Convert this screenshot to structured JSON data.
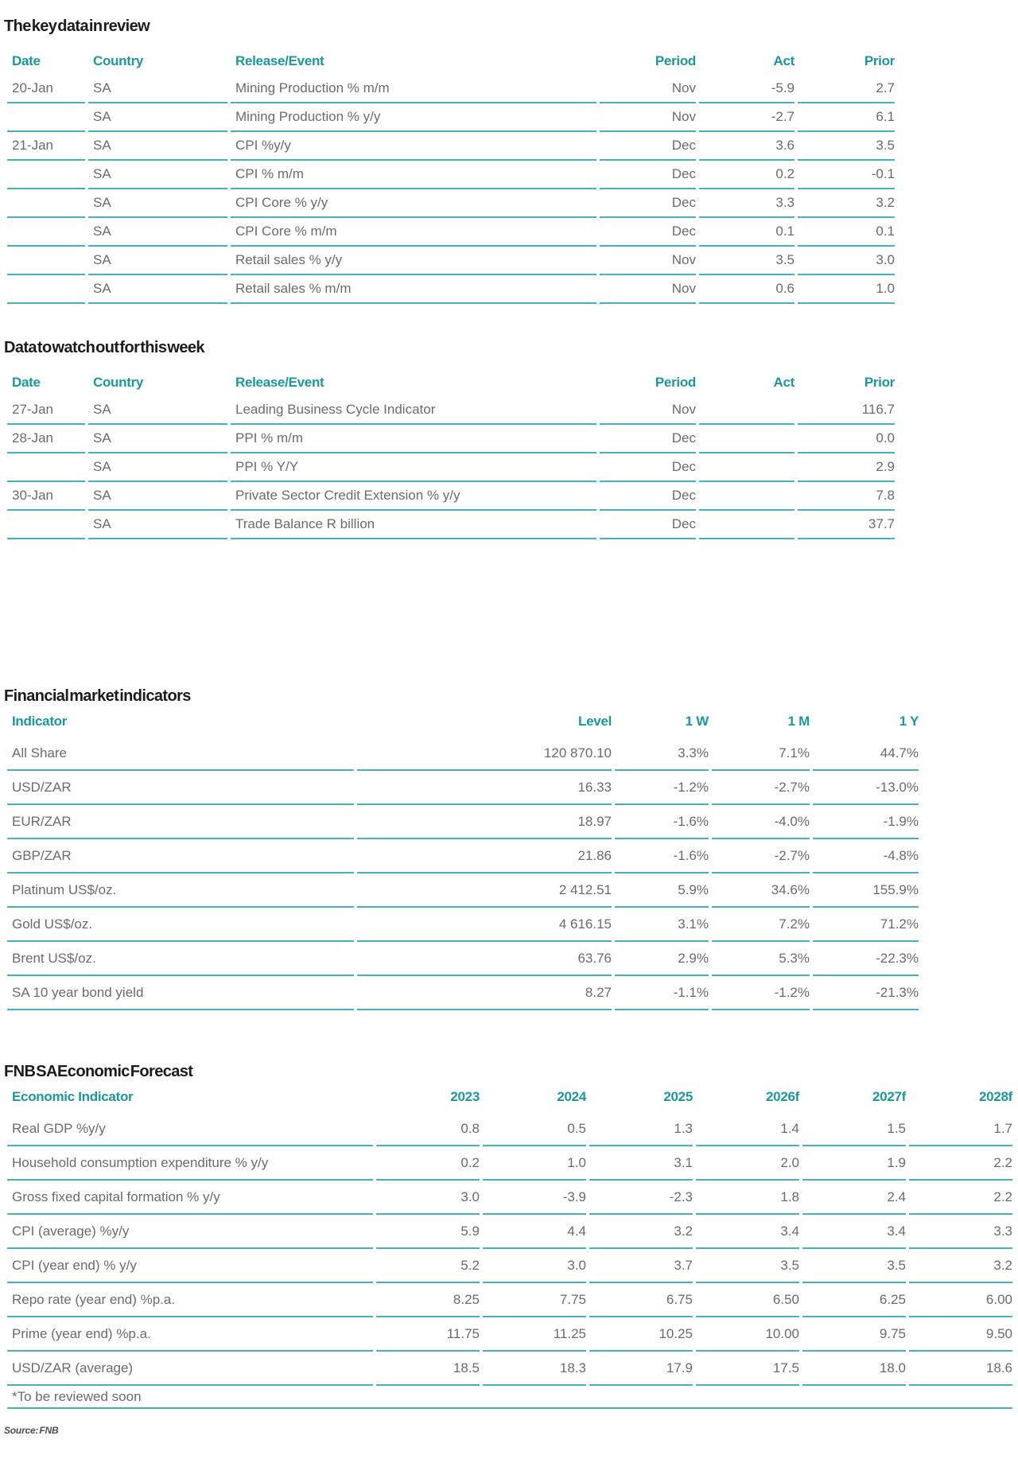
{
  "colors": {
    "accent_teal": "#1a97a0",
    "line_teal": "#46b2b8",
    "body_text": "#6a6b6e",
    "title_text": "#1c1c1c"
  },
  "key_data": {
    "title": "The key data in review",
    "headers": [
      "Date",
      "Country",
      "Release/Event",
      "Period",
      "Act",
      "Prior"
    ],
    "rows": [
      [
        "20-Jan",
        "SA",
        "Mining Production % m/m",
        "Nov",
        "-5.9",
        "2.7"
      ],
      [
        "",
        "SA",
        "Mining Production % y/y",
        "Nov",
        "-2.7",
        "6.1"
      ],
      [
        "21-Jan",
        "SA",
        "CPI %y/y",
        "Dec",
        "3.6",
        "3.5"
      ],
      [
        "",
        "SA",
        "CPI % m/m",
        "Dec",
        "0.2",
        "-0.1"
      ],
      [
        "",
        "SA",
        "CPI Core % y/y",
        "Dec",
        "3.3",
        "3.2"
      ],
      [
        "",
        "SA",
        "CPI Core % m/m",
        "Dec",
        "0.1",
        "0.1"
      ],
      [
        "",
        "SA",
        "Retail sales % y/y",
        "Nov",
        "3.5",
        "3.0"
      ],
      [
        "",
        "SA",
        "Retail sales % m/m",
        "Nov",
        "0.6",
        "1.0"
      ]
    ]
  },
  "watch": {
    "title": "Data to watch out for this week",
    "headers": [
      "Date",
      "Country",
      "Release/Event",
      "Period",
      "Act",
      "Prior"
    ],
    "rows": [
      [
        "27-Jan",
        "SA",
        "Leading Business Cycle Indicator",
        "Nov",
        "",
        "116.7"
      ],
      [
        "28-Jan",
        "SA",
        "PPI % m/m",
        "Dec",
        "",
        "0.0"
      ],
      [
        "",
        "SA",
        "PPI % Y/Y",
        "Dec",
        "",
        "2.9"
      ],
      [
        "30-Jan",
        "SA",
        "Private Sector Credit Extension % y/y",
        "Dec",
        "",
        "7.8"
      ],
      [
        "",
        "SA",
        "Trade Balance R billion",
        "Dec",
        "",
        "37.7"
      ]
    ]
  },
  "market": {
    "title": "Financial market indicators",
    "headers": [
      "Indicator",
      "Level",
      "1 W",
      "1 M",
      "1 Y"
    ],
    "rows": [
      [
        "All Share",
        "120 870.10",
        "3.3%",
        "7.1%",
        "44.7%"
      ],
      [
        "USD/ZAR",
        "16.33",
        "-1.2%",
        "-2.7%",
        "-13.0%"
      ],
      [
        "EUR/ZAR",
        "18.97",
        "-1.6%",
        "-4.0%",
        "-1.9%"
      ],
      [
        "GBP/ZAR",
        "21.86",
        "-1.6%",
        "-2.7%",
        "-4.8%"
      ],
      [
        "Platinum US$/oz.",
        "2 412.51",
        "5.9%",
        "34.6%",
        "155.9%"
      ],
      [
        "Gold US$/oz.",
        "4 616.15",
        "3.1%",
        "7.2%",
        "71.2%"
      ],
      [
        "Brent US$/oz.",
        "63.76",
        "2.9%",
        "5.3%",
        "-22.3%"
      ],
      [
        "SA 10 year bond yield",
        "8.27",
        "-1.1%",
        "-1.2%",
        "-21.3%"
      ]
    ]
  },
  "forecast": {
    "title": "FNB SA Economic Forecast",
    "headers": [
      "Economic Indicator",
      "2023",
      "2024",
      "2025",
      "2026f",
      "2027f",
      "2028f"
    ],
    "rows": [
      [
        "Real GDP %y/y",
        "0.8",
        "0.5",
        "1.3",
        "1.4",
        "1.5",
        "1.7"
      ],
      [
        "Household consumption expenditure % y/y",
        "0.2",
        "1.0",
        "3.1",
        "2.0",
        "1.9",
        "2.2"
      ],
      [
        "Gross fixed capital formation % y/y",
        "3.0",
        "-3.9",
        "-2.3",
        "1.8",
        "2.4",
        "2.2"
      ],
      [
        "CPI (average) %y/y",
        "5.9",
        "4.4",
        "3.2",
        "3.4",
        "3.4",
        "3.3"
      ],
      [
        "CPI (year end) % y/y",
        "5.2",
        "3.0",
        "3.7",
        "3.5",
        "3.5",
        "3.2"
      ],
      [
        "Repo rate (year end) %p.a.",
        "8.25",
        "7.75",
        "6.75",
        "6.50",
        "6.25",
        "6.00"
      ],
      [
        "Prime (year end) %p.a.",
        "11.75",
        "11.25",
        "10.25",
        "10.00",
        "9.75",
        "9.50"
      ],
      [
        "USD/ZAR (average)",
        "18.5",
        "18.3",
        "17.9",
        "17.5",
        "18.0",
        "18.6"
      ]
    ],
    "footnote": "*To be reviewed soon"
  },
  "source": "Source: FNB"
}
